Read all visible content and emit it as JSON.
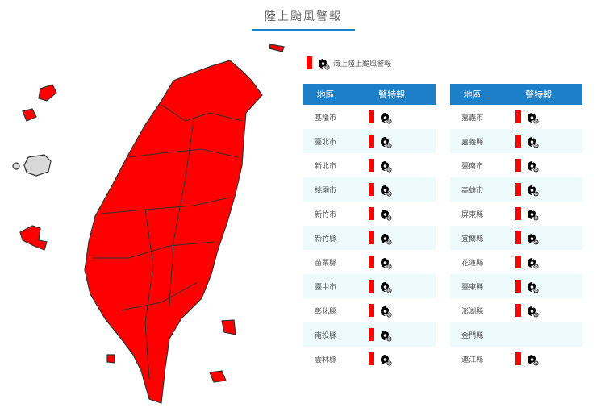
{
  "title": "陸上颱風警報",
  "legend": {
    "label": "海上陸上颱風警報",
    "icon": "typhoon-icon",
    "color": "#ff0000"
  },
  "table_headers": {
    "region": "地區",
    "warning": "警特報"
  },
  "left_table": [
    {
      "region": "基隆市",
      "warning": true
    },
    {
      "region": "臺北市",
      "warning": true
    },
    {
      "region": "新北市",
      "warning": true
    },
    {
      "region": "桃園市",
      "warning": true
    },
    {
      "region": "新竹市",
      "warning": true
    },
    {
      "region": "新竹縣",
      "warning": true
    },
    {
      "region": "苗栗縣",
      "warning": true
    },
    {
      "region": "臺中市",
      "warning": true
    },
    {
      "region": "彰化縣",
      "warning": true
    },
    {
      "region": "南投縣",
      "warning": true
    },
    {
      "region": "雲林縣",
      "warning": true
    }
  ],
  "right_table": [
    {
      "region": "嘉義市",
      "warning": true
    },
    {
      "region": "嘉義縣",
      "warning": true
    },
    {
      "region": "臺南市",
      "warning": true
    },
    {
      "region": "高雄市",
      "warning": true
    },
    {
      "region": "屏東縣",
      "warning": true
    },
    {
      "region": "宜蘭縣",
      "warning": true
    },
    {
      "region": "花蓮縣",
      "warning": true
    },
    {
      "region": "臺東縣",
      "warning": true
    },
    {
      "region": "澎湖縣",
      "warning": true
    },
    {
      "region": "金門縣",
      "warning": false
    },
    {
      "region": "連江縣",
      "warning": true
    }
  ],
  "colors": {
    "warning": "#ff0000",
    "no_warning": "#d9d9d9",
    "header": "#1e7fc9"
  }
}
